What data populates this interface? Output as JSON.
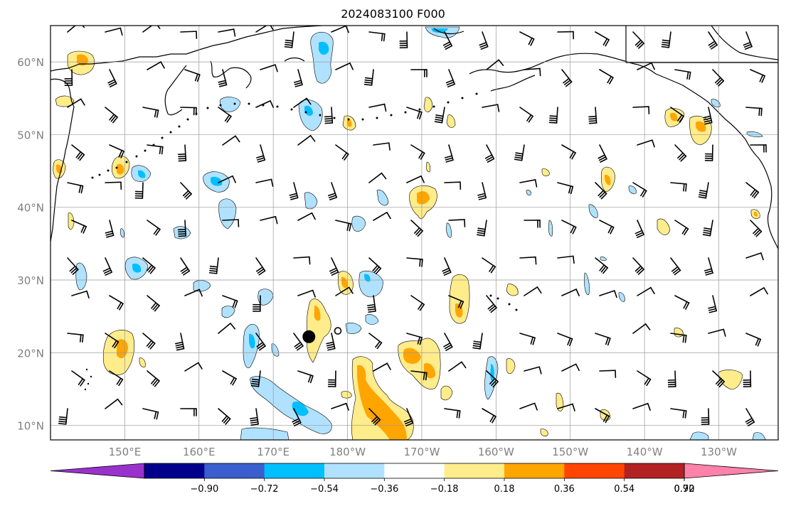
{
  "title": "2024083100 F000",
  "map": {
    "lon_range": [
      140,
      238
    ],
    "lat_range": [
      8,
      65
    ],
    "lat_ticks": [
      {
        "lat": 10,
        "label": "10°N"
      },
      {
        "lat": 20,
        "label": "20°N"
      },
      {
        "lat": 30,
        "label": "30°N"
      },
      {
        "lat": 40,
        "label": "40°N"
      },
      {
        "lat": 50,
        "label": "50°N"
      },
      {
        "lat": 60,
        "label": "60°N"
      }
    ],
    "lon_ticks": [
      {
        "lon": 150,
        "label": "150°E"
      },
      {
        "lon": 160,
        "label": "160°E"
      },
      {
        "lon": 170,
        "label": "170°E"
      },
      {
        "lon": 180,
        "label": "180°W"
      },
      {
        "lon": 190,
        "label": "170°W"
      },
      {
        "lon": 200,
        "label": "160°W"
      },
      {
        "lon": 210,
        "label": "150°W"
      },
      {
        "lon": 220,
        "label": "140°W"
      },
      {
        "lon": 230,
        "label": "130°W"
      }
    ],
    "grid": true,
    "markers": [
      {
        "name": "large-filled-dot",
        "lon": 174.8,
        "lat": 22.2,
        "style": "filled"
      },
      {
        "name": "small-open-dot",
        "lon": 178.7,
        "lat": 23.0,
        "style": "open"
      }
    ]
  },
  "colorbar": {
    "colors": [
      "#9932cc",
      "#00008b",
      "#3a5fcd",
      "#00bfff",
      "#b0e2ff",
      "#ffffff",
      "#ffec8b",
      "#ffa500",
      "#ff4500",
      "#b22222",
      "#ff82ab"
    ],
    "tick_labels": [
      "−0.90",
      "−0.72",
      "−0.54",
      "−0.36",
      "−0.18",
      "0.18",
      "0.36",
      "0.54",
      "0.72",
      "0.90"
    ],
    "extend": "both"
  }
}
